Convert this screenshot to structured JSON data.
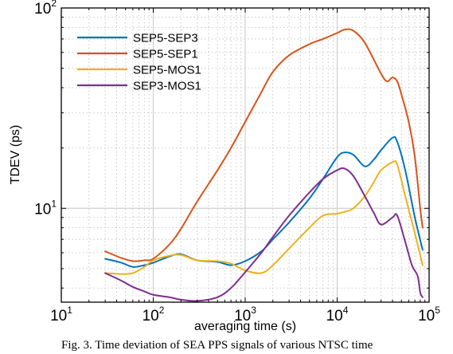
{
  "chart_data": {
    "type": "line",
    "xlabel": "averaging time (s)",
    "ylabel": "TDEV (ps)",
    "xscale": "log",
    "yscale": "log",
    "xlim": [
      10,
      100000
    ],
    "ylim": [
      3.4,
      100
    ],
    "x_ticks": [
      {
        "base": "10",
        "exp": "1"
      },
      {
        "base": "10",
        "exp": "2"
      },
      {
        "base": "10",
        "exp": "3"
      },
      {
        "base": "10",
        "exp": "4"
      },
      {
        "base": "10",
        "exp": "5"
      }
    ],
    "y_ticks": [
      {
        "base": "10",
        "exp": "1"
      },
      {
        "base": "10",
        "exp": "2"
      }
    ],
    "grid": true,
    "legend_position": "top-left",
    "series": [
      {
        "name": "SEP5-SEP3",
        "color": "#0072BD",
        "x": [
          30,
          45,
          60,
          80,
          100,
          150,
          200,
          300,
          500,
          700,
          1000,
          1500,
          2000,
          3000,
          5000,
          7000,
          10000,
          12000,
          15000,
          20000,
          25000,
          30000,
          40000,
          45000,
          55000,
          70000,
          85000
        ],
        "y": [
          5.6,
          5.35,
          5.1,
          5.2,
          5.35,
          5.75,
          5.9,
          5.5,
          5.4,
          5.2,
          5.45,
          6.1,
          7.0,
          8.5,
          11.2,
          14.0,
          18.0,
          19.0,
          18.5,
          16.2,
          17.5,
          19.5,
          22.5,
          21.5,
          15.5,
          9.0,
          6.2
        ]
      },
      {
        "name": "SEP5-SEP1",
        "color": "#D95319",
        "x": [
          30,
          45,
          60,
          80,
          100,
          150,
          200,
          300,
          500,
          700,
          1000,
          1500,
          2000,
          3000,
          5000,
          7000,
          10000,
          12000,
          15000,
          20000,
          30000,
          35000,
          40000,
          45000,
          50000,
          60000,
          70000,
          80000,
          85000
        ],
        "y": [
          6.1,
          5.65,
          5.45,
          5.5,
          5.6,
          6.6,
          7.9,
          10.8,
          15.5,
          20.0,
          27.0,
          38.0,
          48.0,
          58.0,
          66.0,
          70.0,
          75.0,
          78.0,
          77.0,
          67.0,
          47.0,
          43.0,
          45.0,
          43.0,
          37.0,
          27.0,
          18.0,
          10.0,
          8.0
        ]
      },
      {
        "name": "SEP5-MOS1",
        "color": "#EDB120",
        "x": [
          30,
          45,
          60,
          80,
          100,
          150,
          200,
          300,
          500,
          700,
          1000,
          1500,
          2000,
          3000,
          5000,
          7000,
          10000,
          12000,
          15000,
          20000,
          25000,
          30000,
          40000,
          45000,
          55000,
          70000,
          85000
        ],
        "y": [
          4.75,
          4.7,
          4.75,
          5.1,
          5.5,
          5.8,
          5.85,
          5.5,
          5.45,
          5.3,
          4.9,
          4.75,
          5.2,
          6.3,
          8.0,
          9.2,
          9.4,
          9.6,
          10.0,
          11.5,
          13.5,
          15.5,
          17.0,
          16.5,
          11.5,
          7.5,
          5.2
        ]
      },
      {
        "name": "SEP3-MOS1",
        "color": "#7E2F8E",
        "x": [
          30,
          45,
          60,
          80,
          100,
          150,
          200,
          300,
          500,
          700,
          1000,
          1500,
          2000,
          3000,
          5000,
          7000,
          10000,
          12000,
          15000,
          20000,
          25000,
          30000,
          40000,
          45000,
          55000,
          65000,
          75000,
          80000,
          85000
        ],
        "y": [
          4.75,
          4.35,
          4.05,
          3.85,
          3.7,
          3.6,
          3.5,
          3.45,
          3.6,
          4.0,
          4.8,
          6.0,
          7.2,
          9.2,
          12.0,
          14.0,
          15.5,
          15.8,
          14.5,
          11.5,
          9.5,
          8.3,
          9.0,
          9.2,
          6.8,
          5.2,
          4.6,
          3.8,
          3.6
        ]
      }
    ]
  },
  "caption": "Fig. 3. Time deviation of SEA PPS signals of various NTSC time"
}
